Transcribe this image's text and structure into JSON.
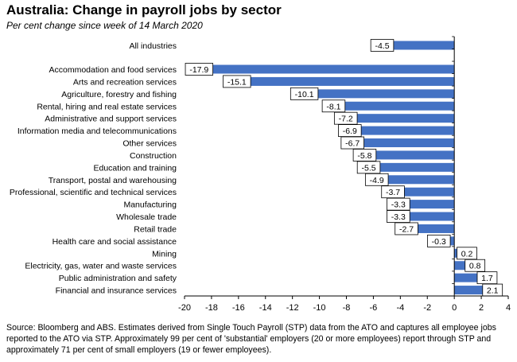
{
  "chart_data": {
    "type": "bar",
    "orientation": "horizontal",
    "title": "Australia: Change in payroll jobs by sector",
    "subtitle": "Per cent change since week of 14 March 2020",
    "categories": [
      "All industries",
      "Accommodation and food services",
      "Arts and recreation services",
      "Agriculture, forestry and fishing",
      "Rental, hiring and real estate services",
      "Administrative and support services",
      "Information media and telecommunications",
      "Other services",
      "Construction",
      "Education and training",
      "Transport, postal and warehousing",
      "Professional, scientific and technical services",
      "Manufacturing",
      "Wholesale trade",
      "Retail trade",
      "Health care and social assistance",
      "Mining",
      "Electricity, gas, water and waste services",
      "Public administration and safety",
      "Financial and insurance services"
    ],
    "values": [
      -4.5,
      -17.9,
      -15.1,
      -10.1,
      -8.1,
      -7.2,
      -6.9,
      -6.7,
      -5.8,
      -5.5,
      -4.9,
      -3.7,
      -3.3,
      -3.3,
      -2.7,
      -0.3,
      0.2,
      0.8,
      1.7,
      2.1
    ],
    "value_labels": [
      "-4.5",
      "-17.9",
      "-15.1",
      "-10.1",
      "-8.1",
      "-7.2",
      "-6.9",
      "-6.7",
      "-5.8",
      "-5.5",
      "-4.9",
      "-3.7",
      "-3.3",
      "-3.3",
      "-2.7",
      "-0.3",
      "0.2",
      "0.8",
      "1.7",
      "2.1"
    ],
    "xlim": [
      -20,
      4
    ],
    "xticks": [
      "-20",
      "-18",
      "-16",
      "-14",
      "-12",
      "-10",
      "-8",
      "-6",
      "-4",
      "-2",
      "0",
      "2",
      "4"
    ],
    "xlabel": "",
    "ylabel": "",
    "grid": false,
    "bar_color": "#4472C4"
  },
  "footnote": "Source: Bloomberg and ABS.  Estimates derived from Single Touch Payroll (STP) data from the ATO and captures all employee jobs reported to the ATO via STP.  Approximately 99 per cent of 'substantial' employers (20 or more employees) report through STP and approximately 71 per cent of small employers (19 or fewer employees)."
}
